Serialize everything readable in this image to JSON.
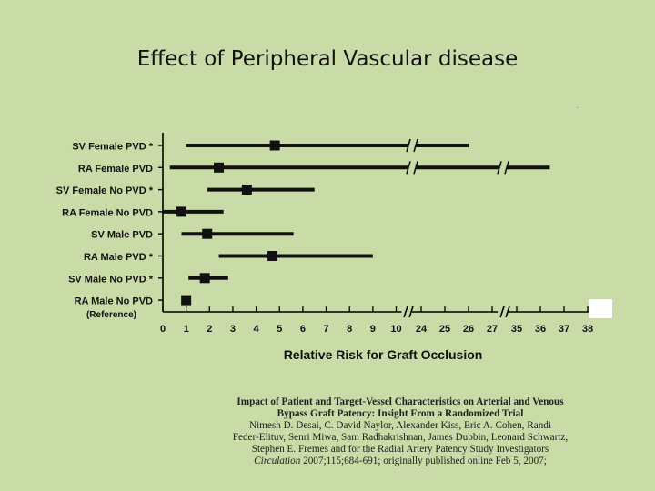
{
  "slide": {
    "title": "Effect of Peripheral Vascular disease"
  },
  "chart_data": {
    "type": "forest",
    "xlabel": "Relative Risk for Graft Occlusion",
    "x_ticks": [
      "0",
      "1",
      "2",
      "3",
      "4",
      "5",
      "6",
      "7",
      "8",
      "9",
      "10",
      "24",
      "25",
      "26",
      "27",
      "35",
      "36",
      "37",
      "38"
    ],
    "axis_breaks": [
      "after 10",
      "after 27"
    ],
    "rows": [
      {
        "label": "SV Female PVD *",
        "point": 4.8,
        "ci_low": 1.0,
        "ci_high": 26.0,
        "breaks": [
          10
        ]
      },
      {
        "label": "RA Female PVD",
        "point": 2.4,
        "ci_low": 0.3,
        "ci_high": 36.4,
        "breaks": [
          10,
          27
        ]
      },
      {
        "label": "SV Female No PVD *",
        "point": 3.6,
        "ci_low": 1.9,
        "ci_high": 6.5,
        "breaks": []
      },
      {
        "label": "RA Female No PVD",
        "point": 0.8,
        "ci_low": 0.0,
        "ci_high": 2.6,
        "breaks": []
      },
      {
        "label": "SV Male PVD",
        "point": 1.9,
        "ci_low": 0.8,
        "ci_high": 5.6,
        "breaks": []
      },
      {
        "label": "RA Male PVD *",
        "point": 4.7,
        "ci_low": 2.4,
        "ci_high": 9.0,
        "breaks": []
      },
      {
        "label": "SV Male No PVD *",
        "point": 1.8,
        "ci_low": 1.1,
        "ci_high": 2.8,
        "breaks": []
      },
      {
        "label": "RA Male No PVD",
        "point": 1.0,
        "ci_low": null,
        "ci_high": null,
        "breaks": []
      }
    ],
    "reference_note": "(Reference)"
  },
  "citation": {
    "title_line1": "Impact of Patient and Target-Vessel Characteristics on Arterial and Venous",
    "title_line2": "Bypass Graft Patency: Insight From a Randomized Trial",
    "authors_line1": "Nimesh D. Desai, C. David Naylor, Alexander Kiss, Eric A. Cohen, Randi",
    "authors_line2": "Feder-Elituv, Senri Miwa, Sam Radhakrishnan, James Dubbin, Leonard Schwartz,",
    "authors_line3": "Stephen E. Fremes and for the Radial Artery Patency Study Investigators",
    "journal": "Circulation",
    "journal_detail": " 2007;115;684-691; originally published online Feb 5, 2007;"
  }
}
